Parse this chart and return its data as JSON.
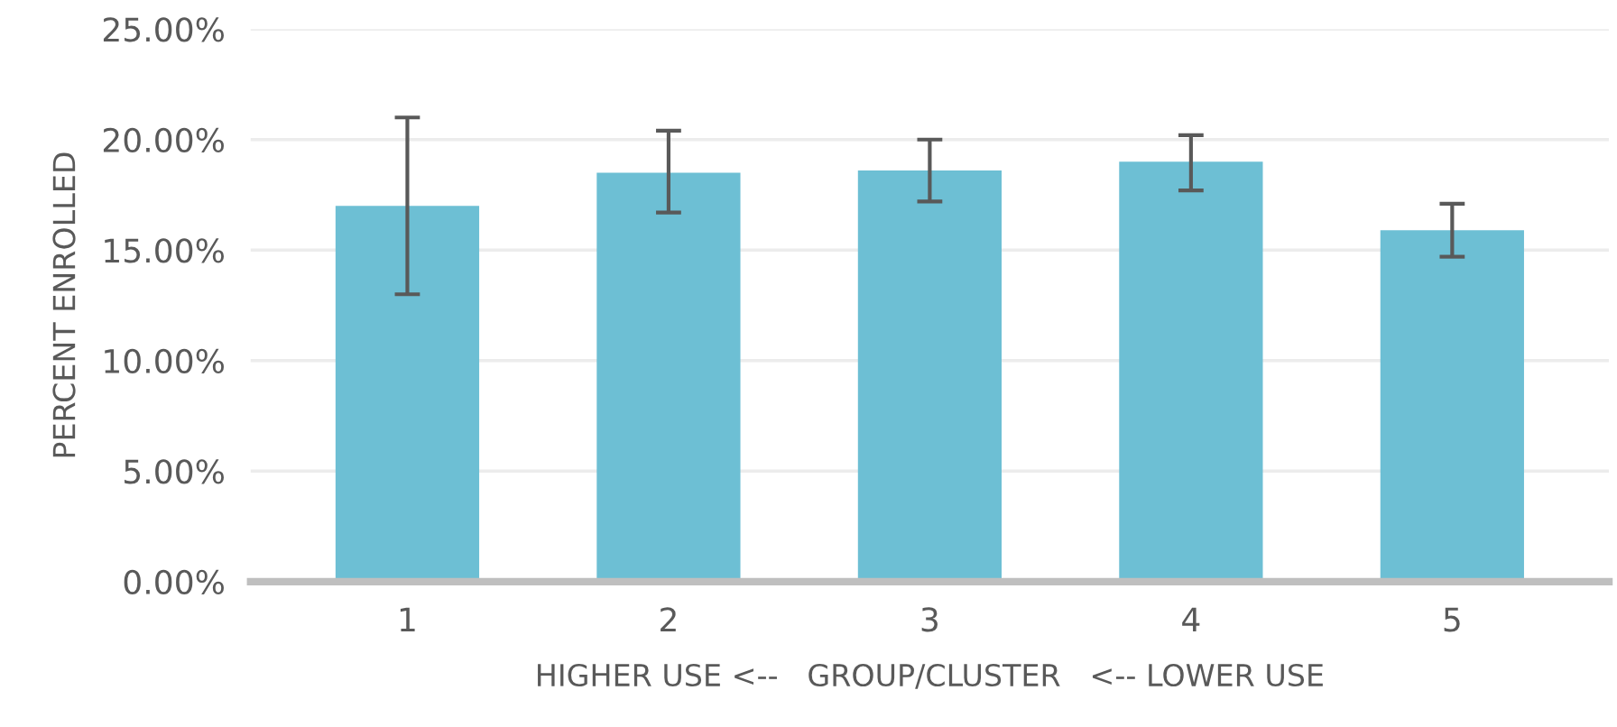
{
  "chart_data": {
    "type": "bar",
    "xlabel": "HIGHER USE <--   GROUP/CLUSTER   <-- LOWER USE",
    "ylabel": "PERCENT ENROLLED",
    "categories": [
      "1",
      "2",
      "3",
      "4",
      "5"
    ],
    "values": [
      17.0,
      18.5,
      18.6,
      19.0,
      15.9
    ],
    "errors": [
      [
        13.0,
        21.0
      ],
      [
        16.7,
        20.4
      ],
      [
        17.2,
        20.0
      ],
      [
        17.7,
        20.2
      ],
      [
        14.7,
        17.1
      ]
    ],
    "color": "#6dbfd4",
    "ylim": [
      0,
      25
    ],
    "yticks": [
      {
        "value": 0,
        "label": "0.00%"
      },
      {
        "value": 5,
        "label": "5.00%"
      },
      {
        "value": 10,
        "label": "10.00%"
      },
      {
        "value": 15,
        "label": "15.00%"
      },
      {
        "value": 20,
        "label": "20.00%"
      },
      {
        "value": 25,
        "label": "25.00%"
      }
    ],
    "grid": "y"
  }
}
